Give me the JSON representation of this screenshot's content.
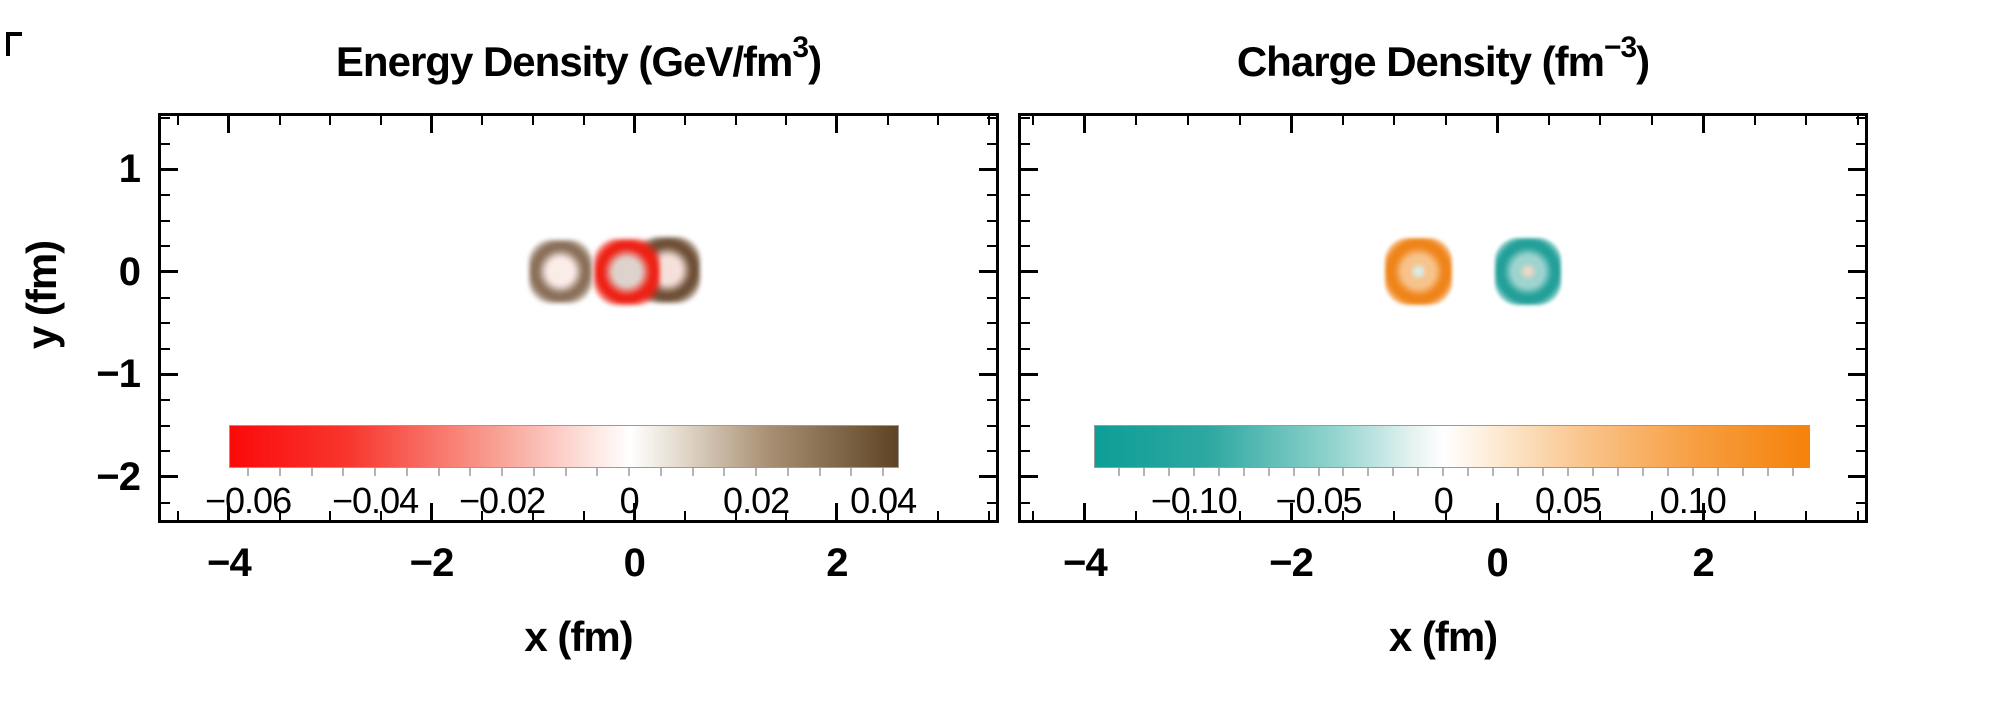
{
  "figure": {
    "background_color": "#ffffff"
  },
  "chart_data": [
    {
      "type": "heatmap",
      "panel": "left",
      "title": "Energy Density (GeV/fm³)",
      "title_prefix": "Energy Density (GeV/fm",
      "title_sup": "3",
      "title_suffix": ")",
      "xlabel": "x (fm)",
      "ylabel": "y (fm)",
      "xlim": [
        -4.7,
        3.6
      ],
      "ylim": [
        -2.45,
        1.55
      ],
      "x_tick_values": [
        -4,
        -2,
        0,
        2
      ],
      "x_tick_labels": [
        "−4",
        "−2",
        "0",
        "2"
      ],
      "y_tick_values": [
        1,
        0,
        -1,
        -2
      ],
      "y_tick_labels": [
        "1",
        "0",
        "−1",
        "−2"
      ],
      "x_minor_step": 0.5,
      "y_minor_step": 0.25,
      "show_y_tick_labels": true,
      "grid": false,
      "colorbar": {
        "orientation": "horizontal",
        "position": "inside-bottom",
        "value_range": [
          -0.063,
          0.0425
        ],
        "tick_values": [
          -0.06,
          -0.04,
          -0.02,
          0,
          0.02,
          0.04
        ],
        "tick_labels": [
          "−0.06",
          "−0.04",
          "−0.02",
          "0",
          "0.02",
          "0.04"
        ],
        "minor_tick_step": 0.005,
        "negative_color": "#fb0a0a",
        "zero_color": "#ffffff",
        "positive_color": "#5e4424",
        "gradient_stops": [
          {
            "pos": 0.0,
            "color": "#fb0a0a"
          },
          {
            "pos": 0.18,
            "color": "#f8372e"
          },
          {
            "pos": 0.4,
            "color": "#f9a094"
          },
          {
            "pos": 0.55,
            "color": "#fde9e5"
          },
          {
            "pos": 0.6,
            "color": "#ffffff"
          },
          {
            "pos": 0.67,
            "color": "#e5dccf"
          },
          {
            "pos": 0.8,
            "color": "#ab9377"
          },
          {
            "pos": 1.0,
            "color": "#5e4424"
          }
        ]
      },
      "features": [
        {
          "kind": "ring",
          "x_fm": -0.73,
          "y_fm": 0.0,
          "radius_fm": 0.23,
          "rim_color": "#8a6f58",
          "center_color": "#fbecea"
        },
        {
          "kind": "ring",
          "x_fm": 0.33,
          "y_fm": 0.02,
          "radius_fm": 0.24,
          "rim_color": "#6d4f35",
          "center_color": "#f5e0da"
        },
        {
          "kind": "ring",
          "x_fm": -0.07,
          "y_fm": 0.0,
          "radius_fm": 0.24,
          "rim_color": "#ee2014",
          "center_color": "#ded3cc"
        }
      ]
    },
    {
      "type": "heatmap",
      "panel": "right",
      "title": "Charge Density (fm⁻³)",
      "title_prefix": "Charge Density (fm",
      "title_sup": "−3",
      "title_suffix": ")",
      "xlabel": "x (fm)",
      "ylabel": "",
      "xlim": [
        -4.65,
        3.6
      ],
      "ylim": [
        -2.45,
        1.55
      ],
      "x_tick_values": [
        -4,
        -2,
        0,
        2
      ],
      "x_tick_labels": [
        "−4",
        "−2",
        "0",
        "2"
      ],
      "y_tick_values": [
        1,
        0,
        -1,
        -2
      ],
      "y_tick_labels": [
        "1",
        "0",
        "−1",
        "−2"
      ],
      "x_minor_step": 0.5,
      "y_minor_step": 0.25,
      "show_y_tick_labels": false,
      "grid": false,
      "colorbar": {
        "orientation": "horizontal",
        "position": "inside-bottom",
        "value_range": [
          -0.14,
          0.147
        ],
        "tick_values": [
          -0.1,
          -0.05,
          0,
          0.05,
          0.1
        ],
        "tick_labels": [
          "−0.10",
          "−0.05",
          "0",
          "0.05",
          "0.10"
        ],
        "minor_tick_step": 0.01,
        "negative_color": "#0d9e97",
        "zero_color": "#ffffff",
        "positive_color": "#f5820a",
        "gradient_stops": [
          {
            "pos": 0.0,
            "color": "#0d9e97"
          },
          {
            "pos": 0.16,
            "color": "#2ea8a1"
          },
          {
            "pos": 0.34,
            "color": "#96d5d0"
          },
          {
            "pos": 0.45,
            "color": "#e8f4f2"
          },
          {
            "pos": 0.488,
            "color": "#ffffff"
          },
          {
            "pos": 0.55,
            "color": "#fdeeda"
          },
          {
            "pos": 0.68,
            "color": "#f9c68e"
          },
          {
            "pos": 0.84,
            "color": "#f79e42"
          },
          {
            "pos": 1.0,
            "color": "#f5820a"
          }
        ]
      },
      "features": [
        {
          "kind": "blob",
          "x_fm": -0.76,
          "y_fm": 0.0,
          "radius_fm": 0.25,
          "main_color": "#ef8419",
          "core_color": "#f7c38c",
          "center_dot_color": "#d9ece9"
        },
        {
          "kind": "blob",
          "x_fm": 0.3,
          "y_fm": 0.0,
          "radius_fm": 0.25,
          "main_color": "#23a099",
          "core_color": "#9fd3cf",
          "center_dot_color": "#f0d8c0"
        }
      ]
    }
  ]
}
